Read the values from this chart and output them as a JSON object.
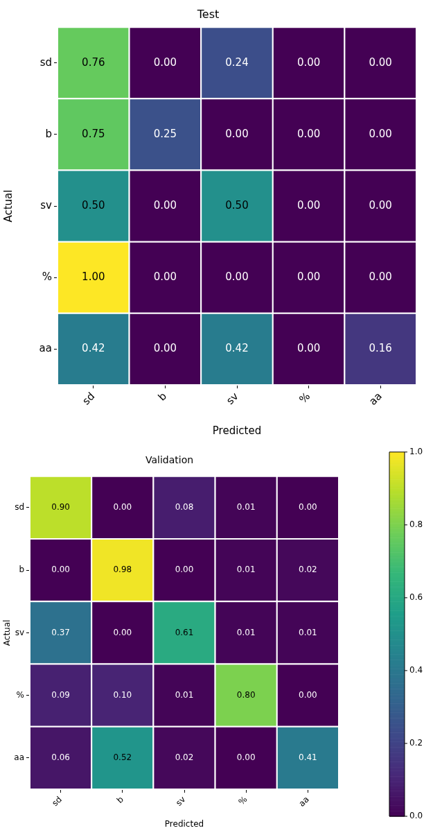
{
  "chart_data": [
    {
      "type": "heatmap",
      "title": "Test",
      "xlabel": "Predicted",
      "ylabel": "Actual",
      "categories": [
        "sd",
        "b",
        "sv",
        "%",
        "aa"
      ],
      "y_categories": [
        "sd",
        "b",
        "sv",
        "%",
        "aa"
      ],
      "data_labels": true,
      "cells": [
        [
          0.76,
          0.0,
          0.24,
          0.0,
          0.0
        ],
        [
          0.75,
          0.25,
          0.0,
          0.0,
          0.0
        ],
        [
          0.5,
          0.0,
          0.5,
          0.0,
          0.0
        ],
        [
          1.0,
          0.0,
          0.0,
          0.0,
          0.0
        ],
        [
          0.42,
          0.0,
          0.42,
          0.0,
          0.16
        ]
      ],
      "cell_labels": [
        [
          "0.76",
          "0.00",
          "0.24",
          "0.00",
          "0.00"
        ],
        [
          "0.75",
          "0.25",
          "0.00",
          "0.00",
          "0.00"
        ],
        [
          "0.50",
          "0.00",
          "0.50",
          "0.00",
          "0.00"
        ],
        [
          "1.00",
          "0.00",
          "0.00",
          "0.00",
          "0.00"
        ],
        [
          "0.42",
          "0.00",
          "0.42",
          "0.00",
          "0.16"
        ]
      ]
    },
    {
      "type": "heatmap",
      "title": "Validation",
      "xlabel": "Predicted",
      "ylabel": "Actual",
      "categories": [
        "sd",
        "b",
        "sv",
        "%",
        "aa"
      ],
      "y_categories": [
        "sd",
        "b",
        "sv",
        "%",
        "aa"
      ],
      "data_labels": true,
      "cells": [
        [
          0.9,
          0.0,
          0.08,
          0.01,
          0.0
        ],
        [
          0.0,
          0.98,
          0.0,
          0.01,
          0.02
        ],
        [
          0.37,
          0.0,
          0.61,
          0.01,
          0.01
        ],
        [
          0.09,
          0.1,
          0.01,
          0.8,
          0.0
        ],
        [
          0.06,
          0.52,
          0.02,
          0.0,
          0.41
        ]
      ],
      "cell_labels": [
        [
          "0.90",
          "0.00",
          "0.08",
          "0.01",
          "0.00"
        ],
        [
          "0.00",
          "0.98",
          "0.00",
          "0.01",
          "0.02"
        ],
        [
          "0.37",
          "0.00",
          "0.61",
          "0.01",
          "0.01"
        ],
        [
          "0.09",
          "0.10",
          "0.01",
          "0.80",
          "0.00"
        ],
        [
          "0.06",
          "0.52",
          "0.02",
          "0.00",
          "0.41"
        ]
      ],
      "clim": [
        0,
        1
      ],
      "cticks": [
        {
          "value": 0,
          "label": "0.0"
        },
        {
          "value": 0.2,
          "label": "0.2"
        },
        {
          "value": 0.4,
          "label": "0.4"
        },
        {
          "value": 0.6,
          "label": "0.6"
        },
        {
          "value": 0.8,
          "label": "0.8"
        },
        {
          "value": 1,
          "label": "1.0"
        }
      ]
    }
  ]
}
